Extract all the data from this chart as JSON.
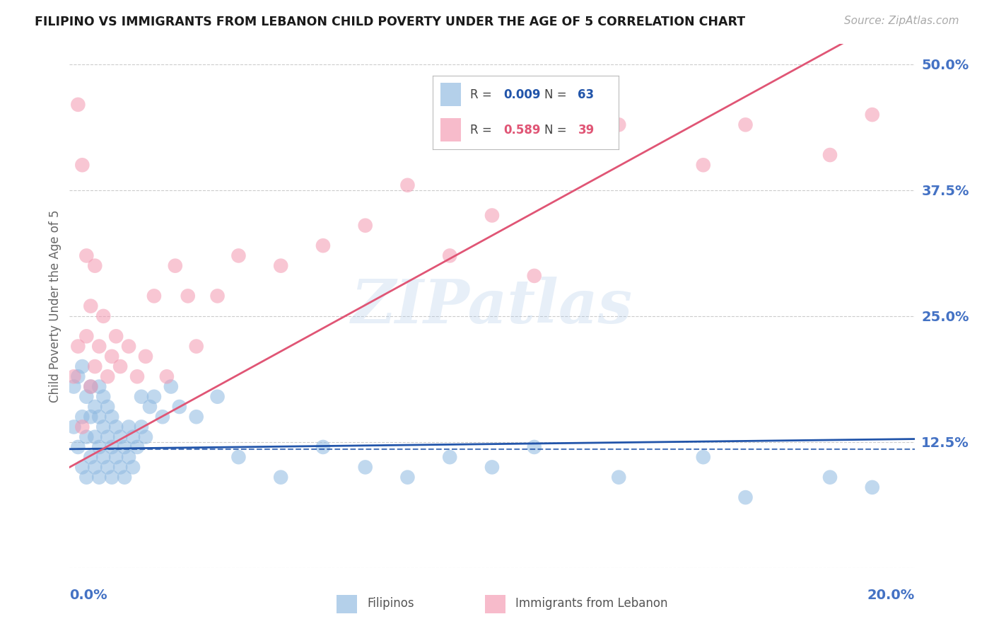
{
  "title": "FILIPINO VS IMMIGRANTS FROM LEBANON CHILD POVERTY UNDER THE AGE OF 5 CORRELATION CHART",
  "source": "Source: ZipAtlas.com",
  "ylabel": "Child Poverty Under the Age of 5",
  "ytick_labels": [
    "",
    "12.5%",
    "25.0%",
    "37.5%",
    "50.0%"
  ],
  "yticks": [
    0.0,
    0.125,
    0.25,
    0.375,
    0.5
  ],
  "xmin": 0.0,
  "xmax": 0.2,
  "ymin": 0.0,
  "ymax": 0.52,
  "title_color": "#1a1a1a",
  "source_color": "#aaaaaa",
  "ylabel_color": "#666666",
  "ytick_color": "#4472c4",
  "xtick_color": "#4472c4",
  "watermark": "ZIPatlas",
  "filipinos_color": "#8db8e0",
  "lebanon_color": "#f497b0",
  "filipinos_line_color": "#2255aa",
  "lebanon_line_color": "#e05575",
  "grid_color": "#cccccc",
  "fil_intercept": 0.118,
  "fil_slope": 0.05,
  "leb_intercept": 0.1,
  "leb_slope": 2.3,
  "filipinos_x": [
    0.001,
    0.001,
    0.002,
    0.002,
    0.003,
    0.003,
    0.003,
    0.004,
    0.004,
    0.004,
    0.005,
    0.005,
    0.005,
    0.006,
    0.006,
    0.006,
    0.007,
    0.007,
    0.007,
    0.007,
    0.008,
    0.008,
    0.008,
    0.009,
    0.009,
    0.009,
    0.01,
    0.01,
    0.01,
    0.011,
    0.011,
    0.012,
    0.012,
    0.013,
    0.013,
    0.014,
    0.014,
    0.015,
    0.015,
    0.016,
    0.017,
    0.017,
    0.018,
    0.019,
    0.02,
    0.022,
    0.024,
    0.026,
    0.03,
    0.035,
    0.04,
    0.05,
    0.06,
    0.07,
    0.08,
    0.09,
    0.1,
    0.11,
    0.13,
    0.15,
    0.16,
    0.18,
    0.19
  ],
  "filipinos_y": [
    0.14,
    0.18,
    0.12,
    0.19,
    0.1,
    0.15,
    0.2,
    0.13,
    0.17,
    0.09,
    0.11,
    0.15,
    0.18,
    0.1,
    0.13,
    0.16,
    0.09,
    0.12,
    0.15,
    0.18,
    0.11,
    0.14,
    0.17,
    0.1,
    0.13,
    0.16,
    0.09,
    0.12,
    0.15,
    0.11,
    0.14,
    0.1,
    0.13,
    0.09,
    0.12,
    0.11,
    0.14,
    0.1,
    0.13,
    0.12,
    0.17,
    0.14,
    0.13,
    0.16,
    0.17,
    0.15,
    0.18,
    0.16,
    0.15,
    0.17,
    0.11,
    0.09,
    0.12,
    0.1,
    0.09,
    0.11,
    0.1,
    0.12,
    0.09,
    0.11,
    0.07,
    0.09,
    0.08
  ],
  "lebanon_x": [
    0.001,
    0.002,
    0.002,
    0.003,
    0.003,
    0.004,
    0.004,
    0.005,
    0.005,
    0.006,
    0.006,
    0.007,
    0.008,
    0.009,
    0.01,
    0.011,
    0.012,
    0.014,
    0.016,
    0.018,
    0.02,
    0.023,
    0.025,
    0.028,
    0.03,
    0.035,
    0.04,
    0.05,
    0.06,
    0.07,
    0.08,
    0.09,
    0.1,
    0.11,
    0.13,
    0.15,
    0.16,
    0.18,
    0.19
  ],
  "lebanon_y": [
    0.19,
    0.46,
    0.22,
    0.4,
    0.14,
    0.31,
    0.23,
    0.18,
    0.26,
    0.2,
    0.3,
    0.22,
    0.25,
    0.19,
    0.21,
    0.23,
    0.2,
    0.22,
    0.19,
    0.21,
    0.27,
    0.19,
    0.3,
    0.27,
    0.22,
    0.27,
    0.31,
    0.3,
    0.32,
    0.34,
    0.38,
    0.31,
    0.35,
    0.29,
    0.44,
    0.4,
    0.44,
    0.41,
    0.45
  ]
}
